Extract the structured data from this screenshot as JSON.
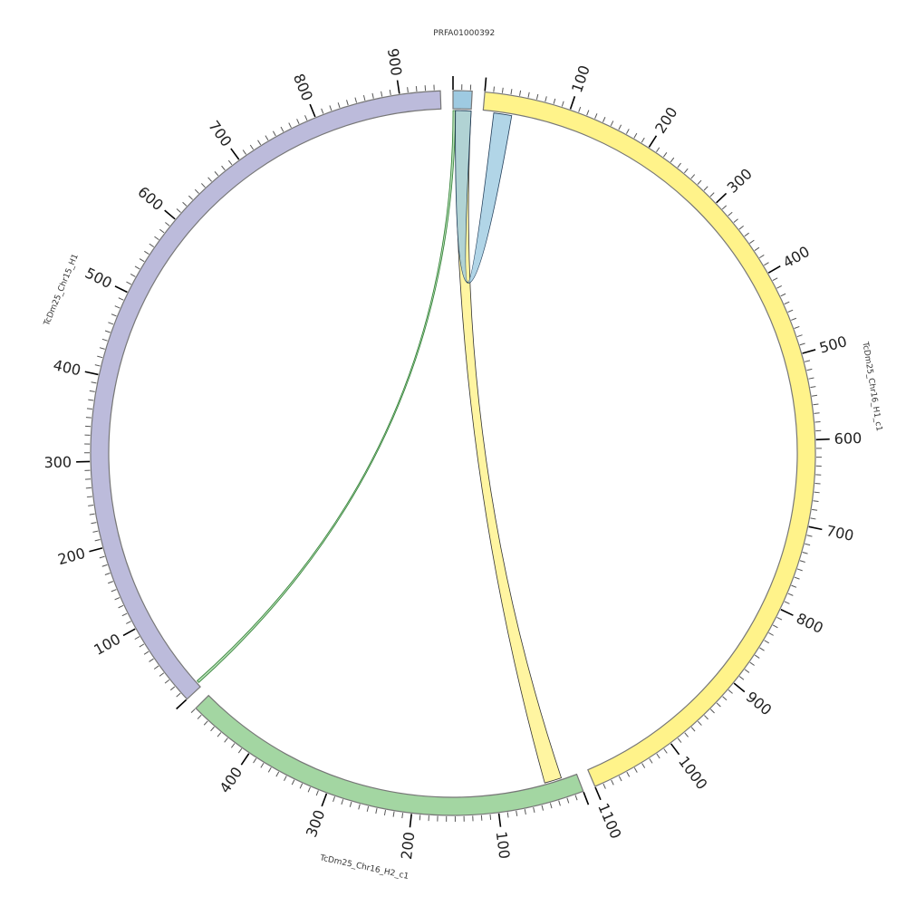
{
  "segments": [
    {
      "name": "PRFA01000392",
      "length": 22,
      "color": "#9ecae1"
    },
    {
      "name": "TcDm25_Chr16_H1_c1",
      "length": 1100,
      "color": "#fff38a"
    },
    {
      "name": "TcDm25_Chr16_H2_c1",
      "length": 480,
      "color": "#a3d6a2"
    },
    {
      "name": "TcDm25_Chr15_H1",
      "length": 947,
      "color": "#bcbbdb"
    }
  ],
  "tick_interval": 10,
  "label_interval": 100,
  "links": [
    {
      "source": {
        "segment": 0,
        "start": 0,
        "end": 3
      },
      "target": {
        "segment": 3,
        "start": 5,
        "end": 8
      },
      "color": "#a3d6a2",
      "stroke": "#2e7d32"
    },
    {
      "source": {
        "segment": 0,
        "start": 3,
        "end": 22
      },
      "target": {
        "segment": 2,
        "start": 19,
        "end": 40
      },
      "color": "#fff38a",
      "stroke": "#333333"
    },
    {
      "source": {
        "segment": 0,
        "start": 3,
        "end": 22
      },
      "target": {
        "segment": 1,
        "start": 13,
        "end": 35
      },
      "color": "#9ecae1",
      "stroke": "#1f3b57"
    }
  ]
}
